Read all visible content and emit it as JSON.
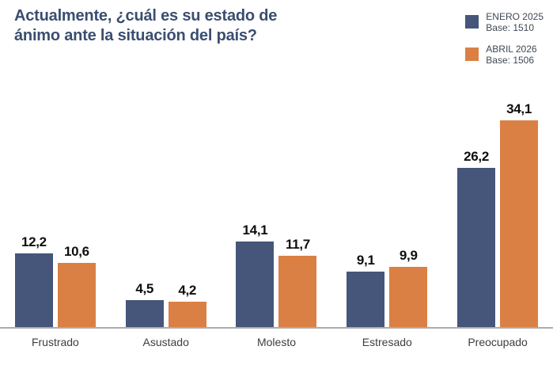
{
  "chart_data": {
    "type": "bar",
    "title": "Actualmente, ¿cuál es su estado de ánimo ante la situación del país?",
    "categories": [
      "Frustrado",
      "Asustado",
      "Molesto",
      "Estresado",
      "Preocupado"
    ],
    "series": [
      {
        "name": "ENERO 2025",
        "base": "Base: 1510",
        "color": "#46557A",
        "values": [
          12.2,
          4.5,
          14.1,
          9.1,
          26.2
        ],
        "value_labels": [
          "12,2",
          "4,5",
          "14,1",
          "9,1",
          "26,2"
        ]
      },
      {
        "name": "ABRIL 2026",
        "base": "Base: 1506",
        "color": "#DB8044",
        "values": [
          10.6,
          4.2,
          11.7,
          9.9,
          34.1
        ],
        "value_labels": [
          "10,6",
          "4,2",
          "11,7",
          "9,9",
          "34,1"
        ]
      }
    ],
    "ylim": [
      0,
      36
    ],
    "grid": false,
    "legend_position": "top-right",
    "value_label_format": "decimal-comma"
  },
  "colors": {
    "background": "#FFFFFF",
    "title_text": "#3A4E70",
    "axis_line": "#ACACAC",
    "value_label_text": "#0E0E0E",
    "category_label_text": "#3E3E3E",
    "legend_text": "#3D4855"
  }
}
